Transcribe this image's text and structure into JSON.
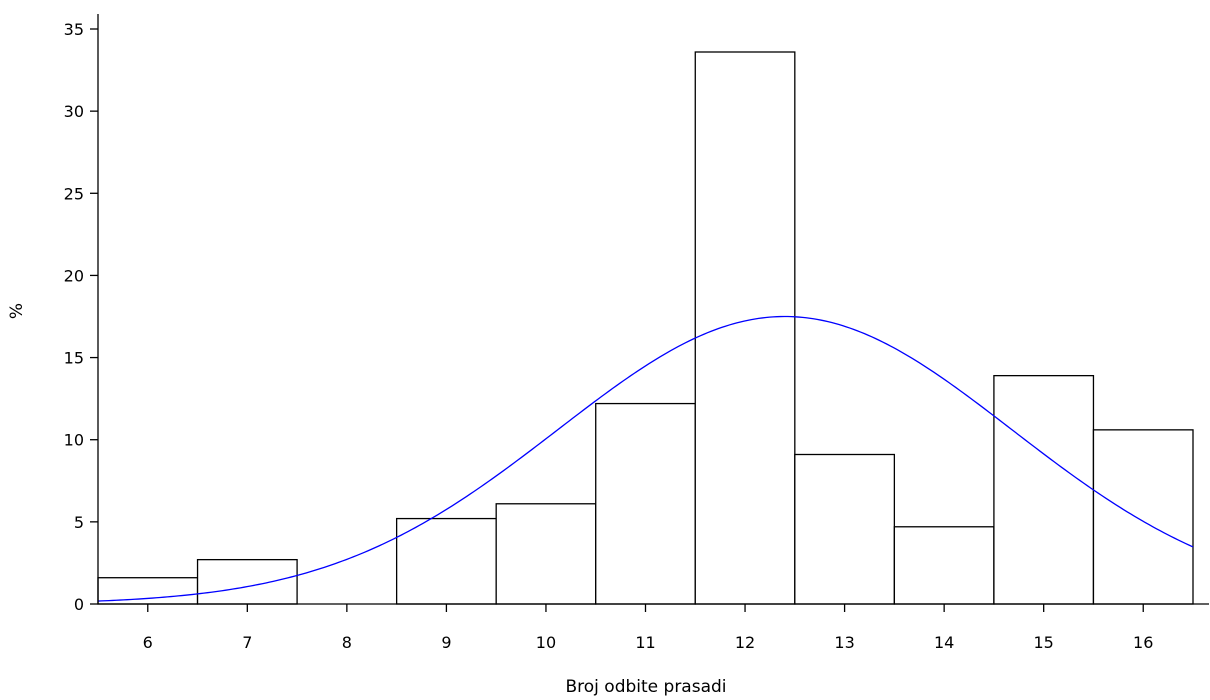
{
  "chart_data": {
    "type": "bar",
    "subtype": "histogram with normal density curve",
    "xlabel": "Broj odbite prasadi",
    "ylabel": "%",
    "categories": [
      "6",
      "7",
      "8",
      "9",
      "10",
      "11",
      "12",
      "13",
      "14",
      "15",
      "16"
    ],
    "values": [
      1.6,
      2.7,
      0,
      5.2,
      6.1,
      12.2,
      33.6,
      9.1,
      4.7,
      13.9,
      10.6
    ],
    "xlim": [
      5.5,
      16.5
    ],
    "ylim": [
      0,
      35
    ],
    "y_ticks": [
      0,
      5,
      10,
      15,
      20,
      25,
      30,
      35
    ],
    "x_ticks": [
      6,
      7,
      8,
      9,
      10,
      11,
      12,
      13,
      14,
      15,
      16
    ],
    "grid": false,
    "curve": {
      "type": "normal",
      "mean": 12.4,
      "sd": 2.28,
      "peak_percent": 17.5,
      "color": "#0000ff"
    },
    "bar_fill": "#ffffff",
    "bar_stroke": "#000000"
  }
}
